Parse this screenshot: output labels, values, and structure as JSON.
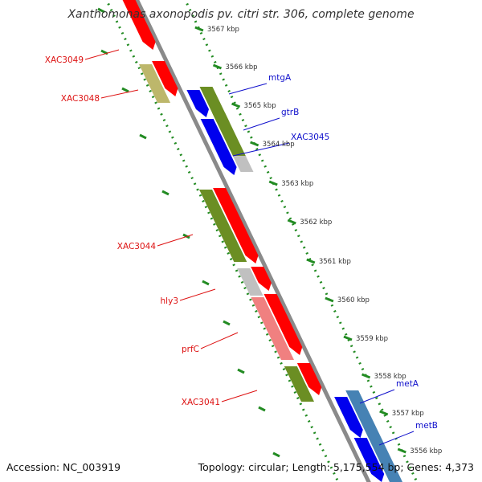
{
  "title": "Xanthomonas axonopodis pv. citri str. 306, complete genome",
  "footer": {
    "accession": "Accession: NC_003919",
    "summary": "Topology: circular; Length: 5,175,554 bp; Genes: 4,373"
  },
  "colors": {
    "backbone": "#888888",
    "tick": "#228b22",
    "forward_label": "#1010cc",
    "reverse_label": "#dd1111",
    "gene_red": "#ff0000",
    "gene_blue": "#0000ee",
    "gene_olive": "#6b8e23",
    "gene_khaki": "#bdb76b",
    "gene_gray": "#c0c0c0",
    "gene_pink": "#f08080",
    "gene_steel": "#4682b4"
  },
  "scale_labels": [
    "3567 kbp",
    "3566 kbp",
    "3565 kbp",
    "3564 kbp",
    "3563 kbp",
    "3562 kbp",
    "3561 kbp",
    "3560 kbp",
    "3559 kbp",
    "3558 kbp",
    "3557 kbp",
    "3556 kbp"
  ],
  "forward_labels": [
    "mtgA",
    "gtrB",
    "XAC3045",
    "metA",
    "metB"
  ],
  "reverse_labels": [
    "XAC3049",
    "XAC3048",
    "XAC3044",
    "hly3",
    "prfC",
    "XAC3041"
  ]
}
